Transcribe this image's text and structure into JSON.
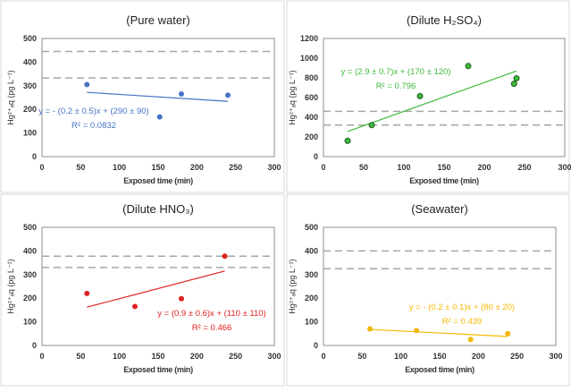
{
  "chart_data": [
    {
      "type": "scatter",
      "title": "(Pure water)",
      "xlabel": "Exposed time (min)",
      "ylabel": "Hg²⁺ₐq (pg L⁻¹)",
      "xlim": [
        0,
        300
      ],
      "ylim": [
        0,
        500
      ],
      "xticks": [
        0,
        50,
        100,
        150,
        200,
        250,
        300
      ],
      "yticks": [
        0,
        100,
        200,
        300,
        400,
        500
      ],
      "color": "#4472c4",
      "points": [
        [
          58,
          305
        ],
        [
          152,
          168
        ],
        [
          180,
          265
        ],
        [
          240,
          260
        ]
      ],
      "fit": {
        "x": [
          58,
          240
        ],
        "slope": -0.2,
        "intercept": 290
      },
      "fit_line": [
        [
          58,
          272
        ],
        [
          240,
          234
        ]
      ],
      "equation": "y = - (0.2 ± 0.5)x + (290 ± 90)",
      "r2": "R² = 0.0832",
      "reference_lines": [
        445,
        333
      ],
      "grid": false
    },
    {
      "type": "scatter",
      "title": "(Dilute H₂SO₄)",
      "xlabel": "Exposed time (min)",
      "ylabel": "Hg²⁺ₐq (pg L⁻¹)",
      "xlim": [
        0,
        300
      ],
      "ylim": [
        0,
        1200
      ],
      "xticks": [
        0,
        50,
        100,
        150,
        200,
        250,
        300
      ],
      "yticks": [
        0,
        200,
        400,
        600,
        800,
        1000,
        1200
      ],
      "color": "#3cb93c",
      "points": [
        [
          30,
          160
        ],
        [
          60,
          320
        ],
        [
          120,
          615
        ],
        [
          180,
          920
        ],
        [
          237,
          740
        ],
        [
          240,
          795
        ]
      ],
      "fit_line": [
        [
          30,
          255
        ],
        [
          240,
          870
        ]
      ],
      "equation": "y = (2.9 ± 0.7)x + (170 ± 120)",
      "r2": "R² = 0.796",
      "reference_lines": [
        460,
        320
      ],
      "grid": false
    },
    {
      "type": "scatter",
      "title": "(Dilute HNO₃)",
      "xlabel": "Exposed time (min)",
      "ylabel": "Hg²⁺ₐq (pg L⁻¹)",
      "xlim": [
        0,
        300
      ],
      "ylim": [
        0,
        500
      ],
      "xticks": [
        0,
        50,
        100,
        150,
        200,
        250,
        300
      ],
      "yticks": [
        0,
        100,
        200,
        300,
        400,
        500
      ],
      "color": "#e02020",
      "points": [
        [
          58,
          220
        ],
        [
          120,
          165
        ],
        [
          180,
          198
        ],
        [
          236,
          378
        ]
      ],
      "fit_line": [
        [
          58,
          162
        ],
        [
          236,
          315
        ]
      ],
      "equation": "y = (0.9 ± 0.6)x + (110 ± 110)",
      "r2": "R² = 0.466",
      "reference_lines": [
        378,
        330
      ],
      "grid": false
    },
    {
      "type": "scatter",
      "title": "(Seawater)",
      "xlabel": "Exposed time (min)",
      "ylabel": "Hg²⁺ₐq (pg L⁻¹)",
      "xlim": [
        0,
        300
      ],
      "ylim": [
        0,
        500
      ],
      "xticks": [
        0,
        50,
        100,
        150,
        200,
        250,
        300
      ],
      "yticks": [
        0,
        100,
        200,
        300,
        400,
        500
      ],
      "color": "#f5b800",
      "points": [
        [
          60,
          70
        ],
        [
          120,
          63
        ],
        [
          190,
          25
        ],
        [
          238,
          50
        ]
      ],
      "fit_line": [
        [
          60,
          68
        ],
        [
          238,
          38
        ]
      ],
      "equation": "y = - (0.2 ± 0.1)x + (80 ± 20)",
      "r2": "R² = 0.439",
      "reference_lines": [
        400,
        325
      ],
      "grid": false
    }
  ]
}
